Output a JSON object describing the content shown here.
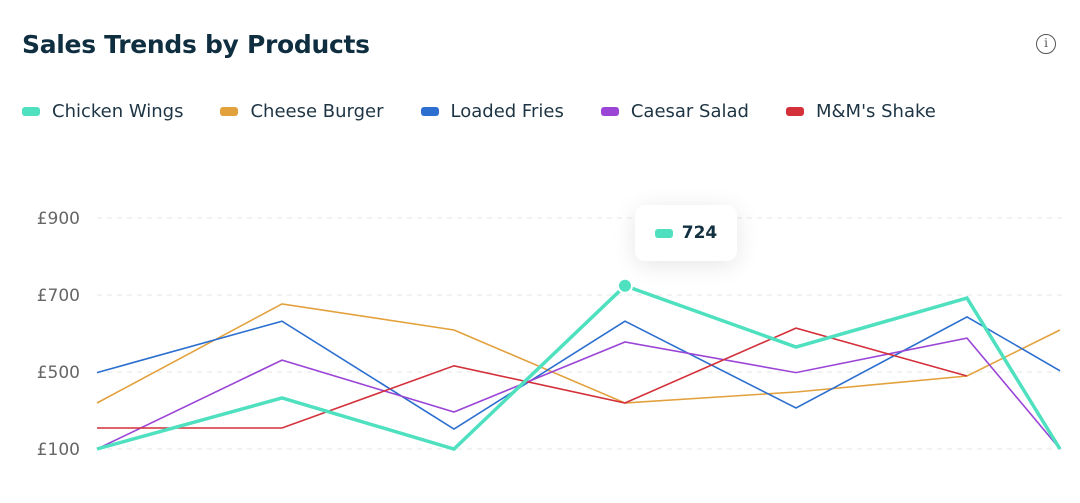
{
  "title": "Sales Trends by Products",
  "info_icon": "info-icon",
  "chart_data": {
    "type": "line",
    "title": "Sales Trends by Products",
    "y_ticks": [
      {
        "value": 100,
        "label": "£100"
      },
      {
        "value": 500,
        "label": "£500"
      },
      {
        "value": 700,
        "label": "£700"
      },
      {
        "value": 900,
        "label": "£900"
      }
    ],
    "ylim": [
      100,
      900
    ],
    "grid": true,
    "legend_position": "top-left",
    "x_count": 7,
    "series": [
      {
        "name": "Chicken Wings",
        "color": "#4fe0bf",
        "values": [
          100,
          365,
          100,
          724,
          565,
          692,
          100
        ]
      },
      {
        "name": "Cheese Burger",
        "color": "#e3a13d",
        "values": [
          339,
          677,
          609,
          339,
          396,
          479,
          609
        ]
      },
      {
        "name": "Loaded Fries",
        "color": "#2c6fcf",
        "values": [
          497,
          632,
          204,
          632,
          313,
          643,
          503
        ]
      },
      {
        "name": "Caesar Salad",
        "color": "#9b45d6",
        "values": [
          100,
          531,
          292,
          578,
          497,
          588,
          100
        ]
      },
      {
        "name": "M&M's Shake",
        "color": "#d4303a",
        "values": [
          209,
          209,
          516,
          339,
          614,
          479,
          null
        ]
      }
    ],
    "tooltip": {
      "series": "Chicken Wings",
      "index": 3,
      "value": "724"
    }
  }
}
